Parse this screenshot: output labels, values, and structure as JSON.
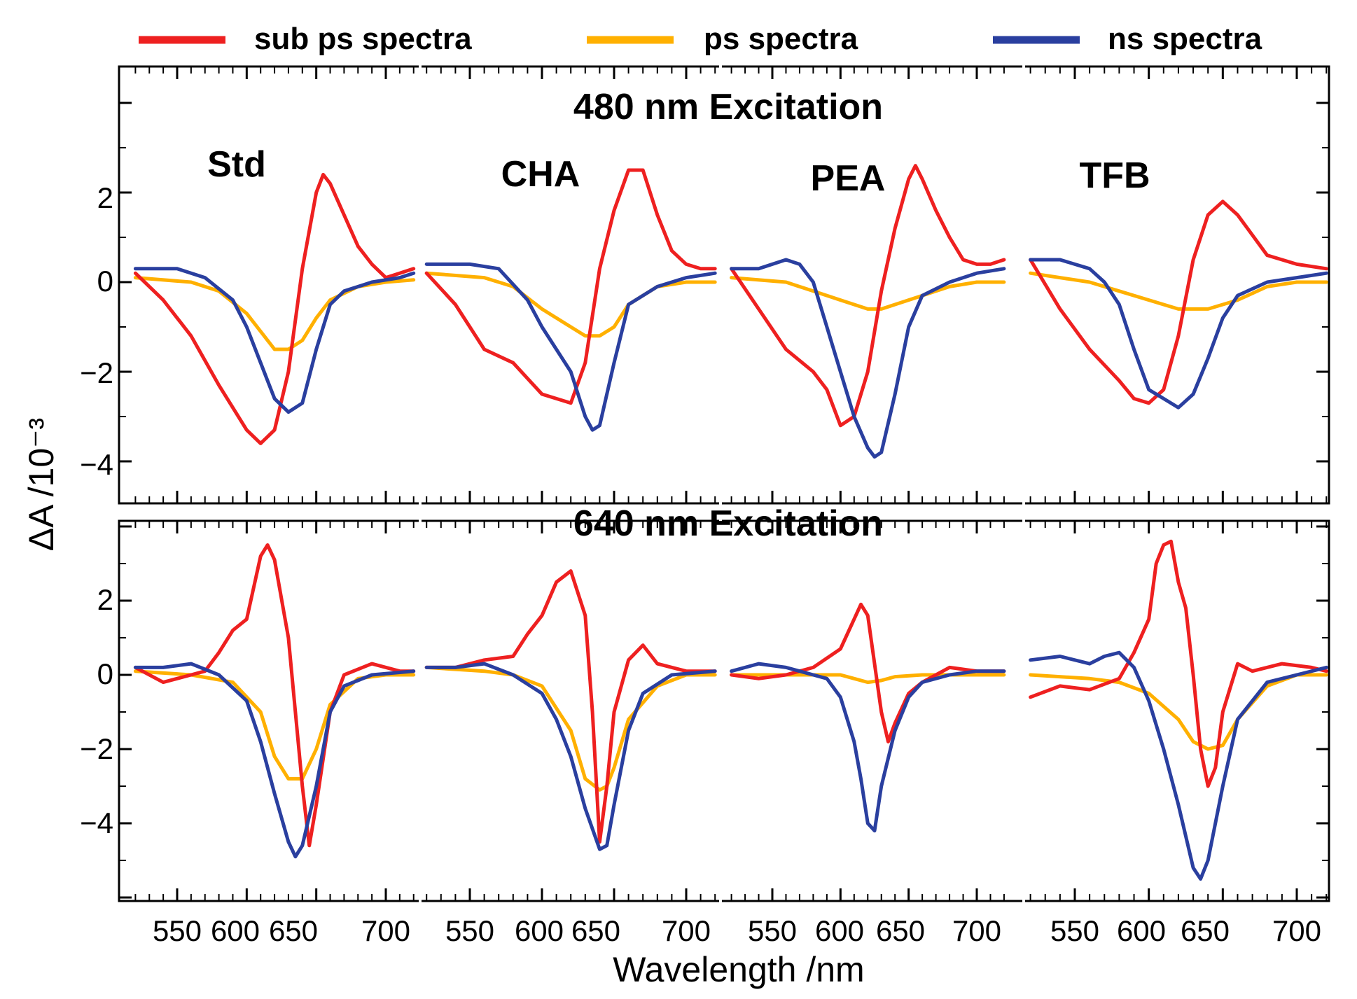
{
  "figure": {
    "ylabel": "ΔA /10⁻³",
    "xlabel": "Wavelength /nm",
    "legend": [
      {
        "label": "sub ps spectra",
        "color": "#ee2020"
      },
      {
        "label": "ps spectra",
        "color": "#ffb000"
      },
      {
        "label": "ns spectra",
        "color": "#2a3f9f"
      }
    ],
    "top_title": "480 nm Excitation",
    "top_title_color": "#1a9ad6",
    "bottom_title": "640 nm Excitation",
    "bottom_title_color": "#f05a33",
    "sample_labels": [
      "Std",
      "CHA",
      "PEA",
      "TFB"
    ],
    "yticks_top": [
      "2",
      "0",
      "−2",
      "−4"
    ],
    "yticks_bottom": [
      "2",
      "0",
      "−2",
      "−4"
    ],
    "xticks": [
      "550",
      "600",
      "650",
      "700"
    ]
  },
  "chart_data": {
    "type": "line",
    "layout": "2 rows (excitation) × 4 columns (sample), shared axes",
    "x_unit": "nm",
    "xlim": [
      520,
      720
    ],
    "ylim_top": [
      -5,
      4.5
    ],
    "ylim_bottom": [
      -6,
      4
    ],
    "panels": [
      {
        "row": "480 nm Excitation",
        "sample": "Std",
        "series": [
          {
            "name": "sub ps spectra",
            "x": [
              520,
              540,
              560,
              580,
              600,
              610,
              620,
              630,
              640,
              650,
              655,
              660,
              670,
              680,
              690,
              700,
              710,
              720
            ],
            "values": [
              0.2,
              -0.4,
              -1.2,
              -2.3,
              -3.3,
              -3.6,
              -3.3,
              -2,
              0.3,
              2,
              2.4,
              2.2,
              1.5,
              0.8,
              0.4,
              0.1,
              0.2,
              0.3
            ]
          },
          {
            "name": "ps spectra",
            "x": [
              520,
              560,
              580,
              600,
              610,
              620,
              630,
              640,
              650,
              660,
              680,
              700,
              720
            ],
            "values": [
              0.1,
              0,
              -0.2,
              -0.7,
              -1.1,
              -1.5,
              -1.5,
              -1.3,
              -0.8,
              -0.4,
              -0.1,
              0,
              0.05
            ]
          },
          {
            "name": "ns spectra",
            "x": [
              520,
              550,
              570,
              590,
              600,
              610,
              620,
              630,
              640,
              650,
              660,
              670,
              690,
              710,
              720
            ],
            "values": [
              0.3,
              0.3,
              0.1,
              -0.4,
              -1,
              -1.8,
              -2.6,
              -2.9,
              -2.7,
              -1.5,
              -0.5,
              -0.2,
              0,
              0.1,
              0.2
            ]
          }
        ]
      },
      {
        "row": "480 nm Excitation",
        "sample": "CHA",
        "series": [
          {
            "name": "sub ps spectra",
            "x": [
              520,
              540,
              560,
              580,
              600,
              610,
              620,
              630,
              640,
              650,
              660,
              670,
              680,
              690,
              700,
              710,
              720
            ],
            "values": [
              0.2,
              -0.5,
              -1.5,
              -1.8,
              -2.5,
              -2.6,
              -2.7,
              -1.8,
              0.3,
              1.6,
              2.5,
              2.5,
              1.5,
              0.7,
              0.4,
              0.3,
              0.3
            ]
          },
          {
            "name": "ps spectra",
            "x": [
              520,
              560,
              580,
              600,
              620,
              630,
              640,
              650,
              660,
              680,
              700,
              720
            ],
            "values": [
              0.2,
              0.1,
              -0.1,
              -0.6,
              -1,
              -1.2,
              -1.2,
              -1,
              -0.5,
              -0.1,
              0,
              0
            ]
          },
          {
            "name": "ns spectra",
            "x": [
              520,
              550,
              570,
              590,
              600,
              610,
              620,
              630,
              635,
              640,
              650,
              660,
              680,
              700,
              720
            ],
            "values": [
              0.4,
              0.4,
              0.3,
              -0.4,
              -1,
              -1.5,
              -2,
              -3,
              -3.3,
              -3.2,
              -1.8,
              -0.5,
              -0.1,
              0.1,
              0.2
            ]
          }
        ]
      },
      {
        "row": "480 nm Excitation",
        "sample": "PEA",
        "series": [
          {
            "name": "sub ps spectra",
            "x": [
              520,
              540,
              560,
              580,
              590,
              600,
              610,
              620,
              630,
              640,
              650,
              655,
              660,
              670,
              680,
              690,
              700,
              710,
              720
            ],
            "values": [
              0.3,
              -0.6,
              -1.5,
              -2,
              -2.4,
              -3.2,
              -3,
              -2,
              -0.2,
              1.2,
              2.3,
              2.6,
              2.3,
              1.6,
              1,
              0.5,
              0.4,
              0.4,
              0.5
            ]
          },
          {
            "name": "ps spectra",
            "x": [
              520,
              560,
              580,
              600,
              620,
              630,
              640,
              660,
              680,
              700,
              720
            ],
            "values": [
              0.1,
              0,
              -0.2,
              -0.4,
              -0.6,
              -0.6,
              -0.5,
              -0.3,
              -0.1,
              0,
              0
            ]
          },
          {
            "name": "ns spectra",
            "x": [
              520,
              540,
              560,
              570,
              580,
              590,
              600,
              610,
              620,
              625,
              630,
              640,
              650,
              660,
              680,
              700,
              720
            ],
            "values": [
              0.3,
              0.3,
              0.5,
              0.4,
              0,
              -1,
              -2,
              -3,
              -3.7,
              -3.9,
              -3.8,
              -2.5,
              -1,
              -0.3,
              0,
              0.2,
              0.3
            ]
          }
        ]
      },
      {
        "row": "480 nm Excitation",
        "sample": "TFB",
        "series": [
          {
            "name": "sub ps spectra",
            "x": [
              520,
              540,
              560,
              580,
              590,
              600,
              610,
              620,
              630,
              640,
              650,
              660,
              680,
              700,
              720
            ],
            "values": [
              0.5,
              -0.6,
              -1.5,
              -2.2,
              -2.6,
              -2.7,
              -2.4,
              -1.2,
              0.5,
              1.5,
              1.8,
              1.5,
              0.6,
              0.4,
              0.3
            ]
          },
          {
            "name": "ps spectra",
            "x": [
              520,
              560,
              580,
              600,
              620,
              630,
              640,
              660,
              680,
              700,
              720
            ],
            "values": [
              0.2,
              0,
              -0.2,
              -0.4,
              -0.6,
              -0.6,
              -0.6,
              -0.4,
              -0.1,
              0,
              0
            ]
          },
          {
            "name": "ns spectra",
            "x": [
              520,
              540,
              560,
              570,
              580,
              590,
              600,
              610,
              620,
              630,
              640,
              650,
              660,
              680,
              700,
              720
            ],
            "values": [
              0.5,
              0.5,
              0.3,
              0,
              -0.5,
              -1.5,
              -2.4,
              -2.6,
              -2.8,
              -2.5,
              -1.7,
              -0.8,
              -0.3,
              0,
              0.1,
              0.2
            ]
          }
        ]
      },
      {
        "row": "640 nm Excitation",
        "sample": "Std",
        "series": [
          {
            "name": "sub ps spectra",
            "x": [
              520,
              540,
              560,
              570,
              580,
              590,
              600,
              610,
              615,
              620,
              630,
              640,
              645,
              650,
              660,
              670,
              690,
              710,
              720
            ],
            "values": [
              0.2,
              -0.2,
              0,
              0.1,
              0.6,
              1.2,
              1.5,
              3.2,
              3.5,
              3.1,
              1,
              -3,
              -4.6,
              -3.5,
              -1,
              0,
              0.3,
              0.1,
              0.1
            ]
          },
          {
            "name": "ps spectra",
            "x": [
              520,
              560,
              590,
              610,
              620,
              630,
              640,
              650,
              660,
              680,
              700,
              720
            ],
            "values": [
              0.1,
              0,
              -0.2,
              -1,
              -2.2,
              -2.8,
              -2.8,
              -2,
              -0.8,
              -0.1,
              0,
              0
            ]
          },
          {
            "name": "ns spectra",
            "x": [
              520,
              540,
              560,
              580,
              600,
              610,
              620,
              630,
              635,
              640,
              650,
              660,
              670,
              690,
              720
            ],
            "values": [
              0.2,
              0.2,
              0.3,
              0,
              -0.7,
              -1.8,
              -3.2,
              -4.5,
              -4.9,
              -4.6,
              -3,
              -1,
              -0.3,
              0,
              0.1
            ]
          }
        ]
      },
      {
        "row": "640 nm Excitation",
        "sample": "CHA",
        "series": [
          {
            "name": "sub ps spectra",
            "x": [
              520,
              540,
              560,
              580,
              590,
              600,
              610,
              620,
              630,
              635,
              640,
              645,
              650,
              660,
              670,
              680,
              700,
              720
            ],
            "values": [
              0.2,
              0.2,
              0.4,
              0.5,
              1.1,
              1.6,
              2.5,
              2.8,
              1.6,
              -1,
              -4.5,
              -3,
              -1,
              0.4,
              0.8,
              0.3,
              0.1,
              0.1
            ]
          },
          {
            "name": "ps spectra",
            "x": [
              520,
              560,
              580,
              600,
              620,
              630,
              640,
              645,
              650,
              660,
              680,
              700,
              720
            ],
            "values": [
              0.2,
              0.1,
              0,
              -0.3,
              -1.5,
              -2.8,
              -3.1,
              -3,
              -2.5,
              -1.2,
              -0.3,
              0,
              0
            ]
          },
          {
            "name": "ns spectra",
            "x": [
              520,
              540,
              560,
              580,
              600,
              610,
              620,
              630,
              640,
              645,
              650,
              660,
              670,
              690,
              720
            ],
            "values": [
              0.2,
              0.2,
              0.3,
              0,
              -0.5,
              -1.2,
              -2.2,
              -3.6,
              -4.7,
              -4.6,
              -3.5,
              -1.5,
              -0.5,
              0,
              0.1
            ]
          }
        ]
      },
      {
        "row": "640 nm Excitation",
        "sample": "PEA",
        "series": [
          {
            "name": "sub ps spectra",
            "x": [
              520,
              540,
              560,
              580,
              600,
              610,
              615,
              620,
              630,
              635,
              640,
              650,
              660,
              680,
              700,
              720
            ],
            "values": [
              0,
              -0.1,
              0,
              0.2,
              0.7,
              1.5,
              1.9,
              1.6,
              -1,
              -1.8,
              -1.3,
              -0.5,
              -0.2,
              0.2,
              0.1,
              0.1
            ]
          },
          {
            "name": "ps spectra",
            "x": [
              520,
              560,
              580,
              600,
              610,
              620,
              630,
              640,
              660,
              680,
              700,
              720
            ],
            "values": [
              0,
              0,
              0,
              0,
              -0.1,
              -0.2,
              -0.15,
              -0.05,
              0,
              0,
              0,
              0
            ]
          },
          {
            "name": "ns spectra",
            "x": [
              520,
              540,
              560,
              580,
              590,
              600,
              610,
              615,
              620,
              625,
              630,
              640,
              650,
              660,
              680,
              700,
              720
            ],
            "values": [
              0.1,
              0.3,
              0.2,
              0,
              -0.1,
              -0.6,
              -1.8,
              -2.8,
              -4,
              -4.2,
              -3,
              -1.5,
              -0.6,
              -0.2,
              0,
              0.1,
              0.1
            ]
          }
        ]
      },
      {
        "row": "640 nm Excitation",
        "sample": "TFB",
        "series": [
          {
            "name": "sub ps spectra",
            "x": [
              520,
              540,
              560,
              580,
              590,
              600,
              605,
              610,
              615,
              620,
              625,
              630,
              635,
              640,
              645,
              650,
              660,
              670,
              690,
              710,
              720
            ],
            "values": [
              -0.6,
              -0.3,
              -0.4,
              -0.1,
              0.6,
              1.5,
              3,
              3.5,
              3.6,
              2.5,
              1.8,
              0,
              -2,
              -3,
              -2.5,
              -1,
              0.3,
              0.1,
              0.3,
              0.2,
              0.1
            ]
          },
          {
            "name": "ps spectra",
            "x": [
              520,
              560,
              580,
              600,
              620,
              630,
              640,
              650,
              660,
              680,
              700,
              720
            ],
            "values": [
              0,
              -0.1,
              -0.2,
              -0.5,
              -1.2,
              -1.8,
              -2,
              -1.9,
              -1.2,
              -0.3,
              0,
              0
            ]
          },
          {
            "name": "ns spectra",
            "x": [
              520,
              540,
              560,
              570,
              580,
              590,
              600,
              610,
              620,
              630,
              635,
              640,
              650,
              660,
              680,
              700,
              720
            ],
            "values": [
              0.4,
              0.5,
              0.3,
              0.5,
              0.6,
              0.2,
              -0.7,
              -2,
              -3.5,
              -5.2,
              -5.5,
              -5,
              -3,
              -1.2,
              -0.2,
              0,
              0.2
            ]
          }
        ]
      }
    ]
  }
}
